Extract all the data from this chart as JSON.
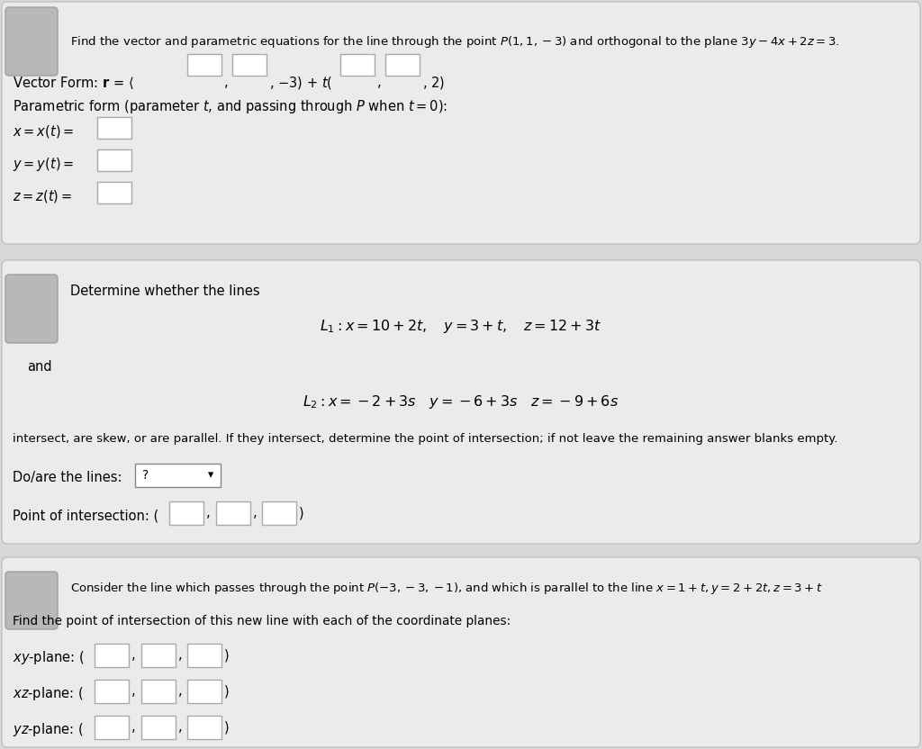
{
  "bg_color": "#d8d8d8",
  "panel_color": "#ebebeb",
  "white": "#ffffff",
  "text_color": "#000000",
  "border_color": "#c0c0c0",
  "badge_color": "#b0b0b0",
  "s1_question": "Find the vector and parametric equations for the line through the point $P(1, 1, -3)$ and orthogonal to the plane $3y - 4x + 2z = 3$.",
  "s2_question": "Determine whether the lines",
  "s2_L1": "$L_1 : x = 10 + 2t, \\quad y = 3 + t, \\quad z = 12 + 3t$",
  "s2_L2": "$L_2 : x = -2 + 3s \\quad y = -6 + 3s \\quad z = -9 + 6s$",
  "s2_desc": "intersect, are skew, or are parallel. If they intersect, determine the point of intersection; if not leave the remaining answer blanks empty.",
  "s3_question": "Consider the line which passes through the point $P(-3, -3, -1)$, and which is parallel to the line $x = 1 + t, y = 2 + 2t, z = 3 + t$",
  "s3_desc": "Find the point of intersection of this new line with each of the coordinate planes:"
}
